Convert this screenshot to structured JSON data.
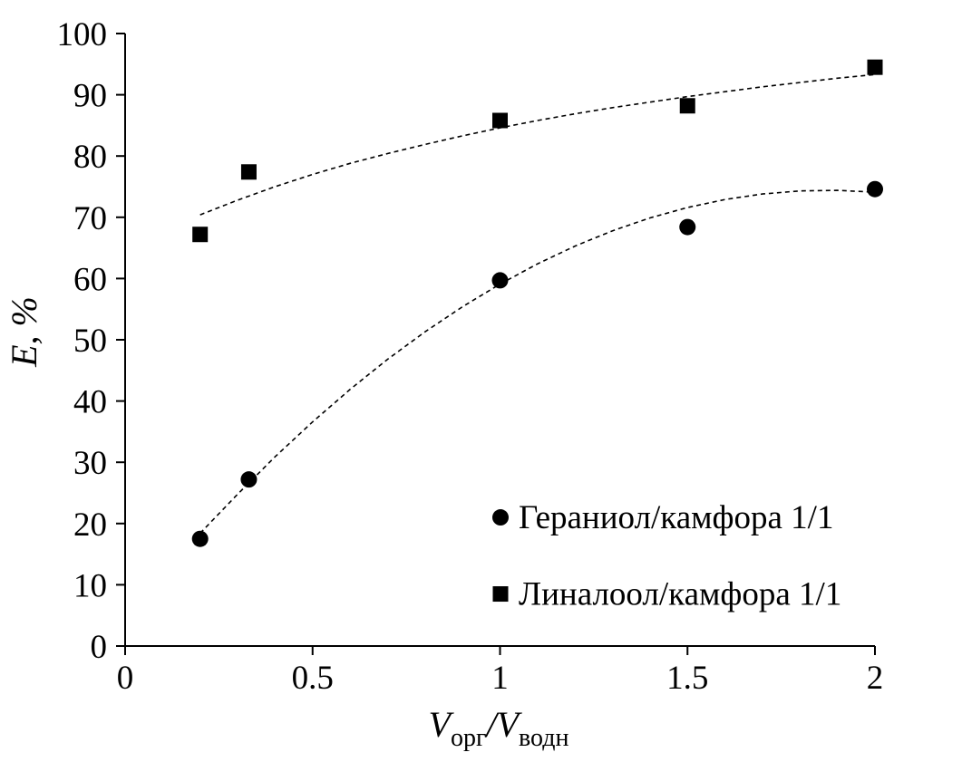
{
  "chart_data": {
    "type": "scatter",
    "xlabel": {
      "main": "V",
      "sub1": "орг",
      "sep": "/V",
      "sub2": "водн"
    },
    "ylabel": "E, %",
    "xlim": [
      0,
      2
    ],
    "ylim": [
      0,
      100
    ],
    "x_ticks": [
      "0",
      "0.5",
      "1",
      "1.5",
      "2"
    ],
    "y_ticks": [
      "0",
      "10",
      "20",
      "30",
      "40",
      "50",
      "60",
      "70",
      "80",
      "90",
      "100"
    ],
    "grid": false,
    "legend_position": "bottom-right",
    "series": [
      {
        "name": "Гераниол/камфора 1/1",
        "marker": "circle",
        "color": "#000000",
        "x": [
          0.2,
          0.33,
          1,
          1.5,
          2
        ],
        "y": [
          17.5,
          27.2,
          59.7,
          68.4,
          74.6
        ],
        "trend_x": [
          0.2,
          0.3,
          0.4,
          0.5,
          0.6,
          0.7,
          0.8,
          0.9,
          1.0,
          1.1,
          1.2,
          1.3,
          1.4,
          1.5,
          1.6,
          1.7,
          1.8,
          1.9,
          2.0
        ],
        "trend_y": [
          18.4,
          24.8,
          30.9,
          36.6,
          41.9,
          46.8,
          51.3,
          55.4,
          59.1,
          62.4,
          65.3,
          67.8,
          69.9,
          71.6,
          72.9,
          73.8,
          74.3,
          74.4,
          74.1
        ]
      },
      {
        "name": "Линалоол/камфора 1/1",
        "marker": "square",
        "color": "#000000",
        "x": [
          0.2,
          0.33,
          1,
          1.5,
          2
        ],
        "y": [
          67.2,
          77.4,
          85.8,
          88.2,
          94.5
        ],
        "trend_x": [
          0.2,
          0.3,
          0.4,
          0.5,
          0.6,
          0.7,
          0.8,
          0.9,
          1.0,
          1.1,
          1.2,
          1.3,
          1.4,
          1.5,
          1.6,
          1.7,
          1.8,
          1.9,
          2.0
        ],
        "trend_y": [
          70.4,
          72.8,
          75.0,
          77.0,
          78.8,
          80.4,
          81.9,
          83.3,
          84.6,
          85.8,
          86.9,
          87.9,
          88.8,
          89.7,
          90.5,
          91.3,
          92.0,
          92.7,
          93.3
        ]
      }
    ]
  }
}
